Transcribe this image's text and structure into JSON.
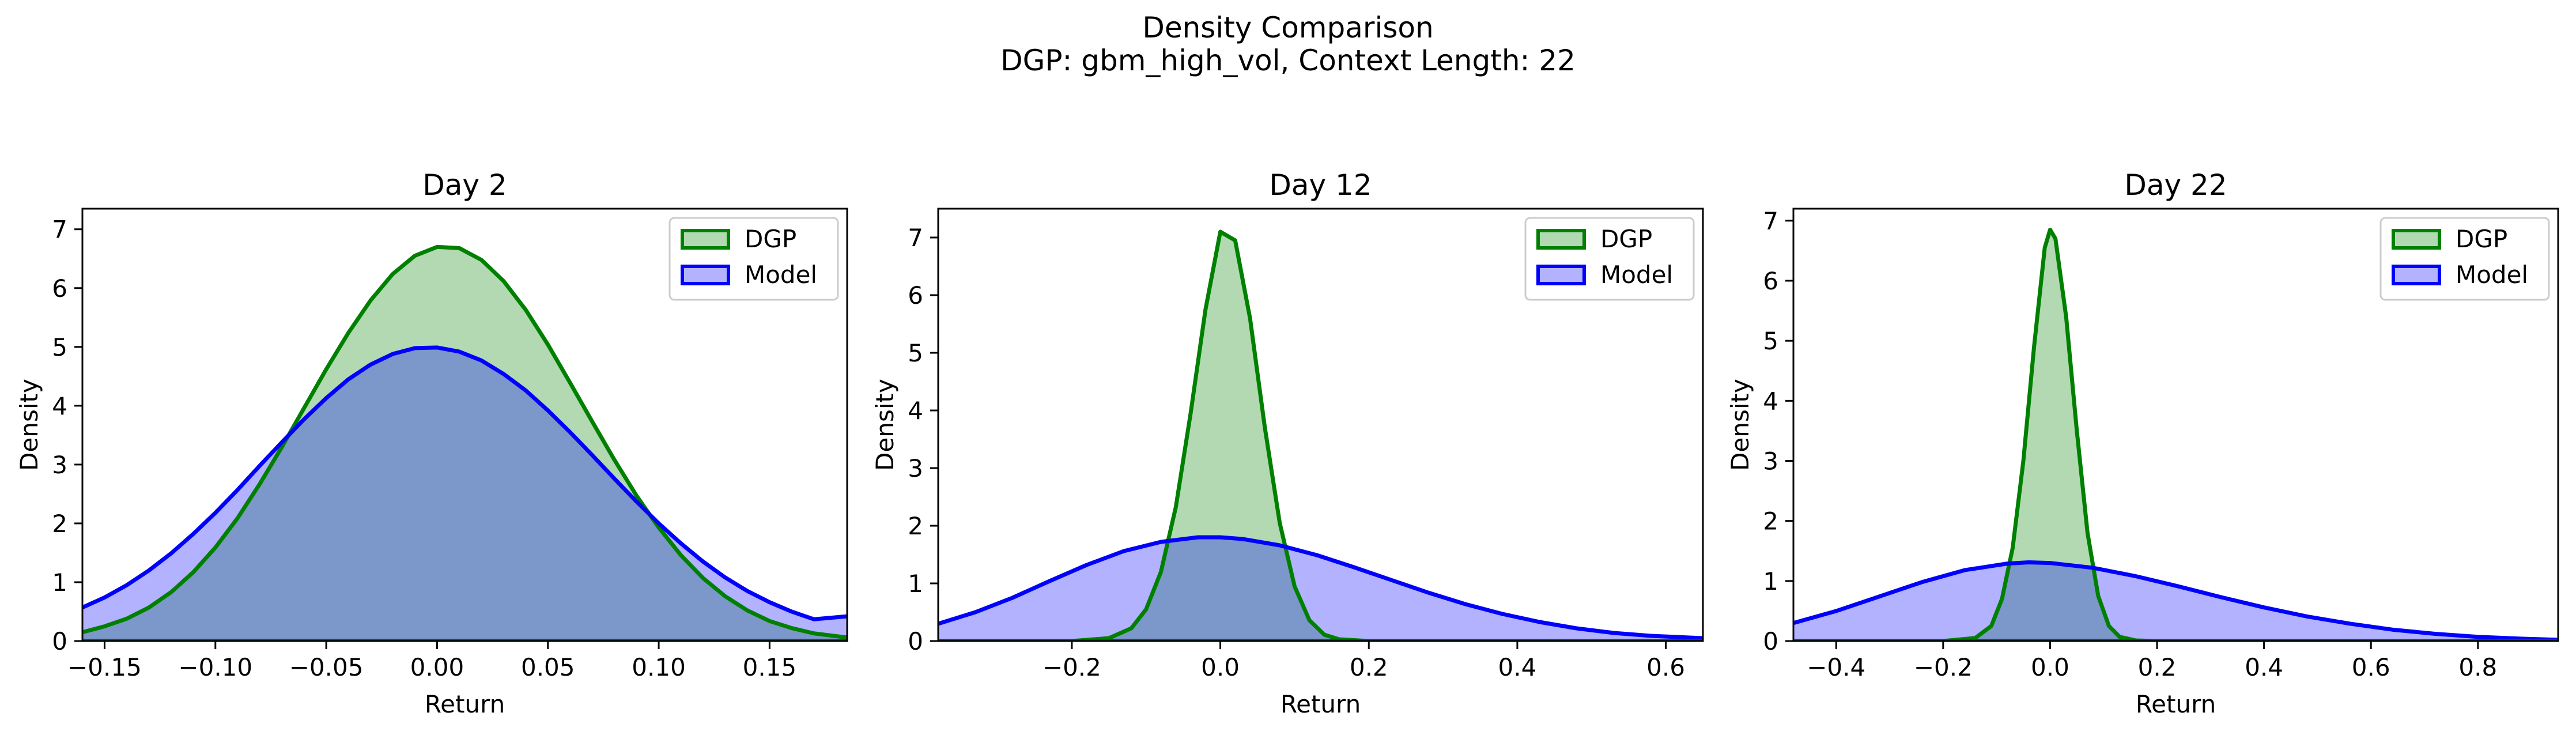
{
  "figure": {
    "title_line1": "Density Comparison",
    "title_line2": "DGP: gbm_high_vol, Context Length: 22"
  },
  "colors": {
    "dgp_line": "#008000",
    "dgp_fill": "#008000",
    "model_line": "#0000ff",
    "model_fill": "#0000ff",
    "overlap_line": "#005050"
  },
  "chart_data": [
    {
      "type": "area",
      "title": "Day 2",
      "xlabel": "Return",
      "ylabel": "Density",
      "xlim": [
        -0.16,
        0.185
      ],
      "ylim": [
        0,
        7.35
      ],
      "xticks": [
        -0.15,
        -0.1,
        -0.05,
        0.0,
        0.05,
        0.1,
        0.15
      ],
      "xtick_labels": [
        "−0.15",
        "−0.10",
        "−0.05",
        "0.00",
        "0.05",
        "0.10",
        "0.15"
      ],
      "yticks": [
        0,
        1,
        2,
        3,
        4,
        5,
        6,
        7
      ],
      "ytick_labels": [
        "0",
        "1",
        "2",
        "3",
        "4",
        "5",
        "6",
        "7"
      ],
      "legend": "top-right",
      "series": [
        {
          "name": "DGP",
          "x": [
            -0.16,
            -0.15,
            -0.14,
            -0.13,
            -0.12,
            -0.11,
            -0.1,
            -0.09,
            -0.08,
            -0.07,
            -0.06,
            -0.05,
            -0.04,
            -0.03,
            -0.02,
            -0.01,
            0.0,
            0.01,
            0.02,
            0.03,
            0.04,
            0.05,
            0.06,
            0.07,
            0.08,
            0.09,
            0.1,
            0.11,
            0.12,
            0.13,
            0.14,
            0.15,
            0.16,
            0.17,
            0.185
          ],
          "y": [
            0.15,
            0.25,
            0.38,
            0.57,
            0.83,
            1.17,
            1.59,
            2.09,
            2.67,
            3.3,
            3.96,
            4.62,
            5.24,
            5.79,
            6.24,
            6.55,
            6.7,
            6.68,
            6.48,
            6.12,
            5.63,
            5.04,
            4.39,
            3.73,
            3.08,
            2.47,
            1.93,
            1.46,
            1.07,
            0.76,
            0.52,
            0.34,
            0.22,
            0.13,
            0.06
          ]
        },
        {
          "name": "Model",
          "x": [
            -0.16,
            -0.15,
            -0.14,
            -0.13,
            -0.12,
            -0.11,
            -0.1,
            -0.09,
            -0.08,
            -0.07,
            -0.06,
            -0.05,
            -0.04,
            -0.03,
            -0.02,
            -0.01,
            0.0,
            0.01,
            0.02,
            0.03,
            0.04,
            0.05,
            0.06,
            0.07,
            0.08,
            0.09,
            0.1,
            0.11,
            0.12,
            0.13,
            0.14,
            0.15,
            0.16,
            0.17,
            0.185
          ],
          "y": [
            0.57,
            0.74,
            0.95,
            1.2,
            1.49,
            1.82,
            2.18,
            2.57,
            2.98,
            3.38,
            3.77,
            4.13,
            4.45,
            4.7,
            4.88,
            4.98,
            4.99,
            4.92,
            4.77,
            4.54,
            4.26,
            3.92,
            3.55,
            3.16,
            2.76,
            2.37,
            2.0,
            1.66,
            1.35,
            1.08,
            0.85,
            0.66,
            0.5,
            0.37,
            0.42
          ]
        }
      ]
    },
    {
      "type": "area",
      "title": "Day 12",
      "xlabel": "Return",
      "ylabel": "Density",
      "xlim": [
        -0.38,
        0.65
      ],
      "ylim": [
        0,
        7.5
      ],
      "xticks": [
        -0.2,
        0.0,
        0.2,
        0.4,
        0.6
      ],
      "xtick_labels": [
        "−0.2",
        "0.0",
        "0.2",
        "0.4",
        "0.6"
      ],
      "yticks": [
        0,
        1,
        2,
        3,
        4,
        5,
        6,
        7
      ],
      "ytick_labels": [
        "0",
        "1",
        "2",
        "3",
        "4",
        "5",
        "6",
        "7"
      ],
      "legend": "top-right",
      "series": [
        {
          "name": "DGP",
          "x": [
            -0.38,
            -0.2,
            -0.15,
            -0.12,
            -0.1,
            -0.08,
            -0.06,
            -0.04,
            -0.02,
            0.0,
            0.02,
            0.04,
            0.06,
            0.08,
            0.1,
            0.12,
            0.14,
            0.16,
            0.2,
            0.65
          ],
          "y": [
            0.0,
            0.0,
            0.05,
            0.22,
            0.55,
            1.2,
            2.32,
            3.95,
            5.75,
            7.1,
            6.95,
            5.6,
            3.7,
            2.05,
            0.95,
            0.36,
            0.11,
            0.03,
            0.0,
            0.0
          ]
        },
        {
          "name": "Model",
          "x": [
            -0.38,
            -0.33,
            -0.28,
            -0.23,
            -0.18,
            -0.13,
            -0.08,
            -0.03,
            0.0,
            0.03,
            0.08,
            0.13,
            0.18,
            0.23,
            0.28,
            0.33,
            0.38,
            0.43,
            0.48,
            0.53,
            0.58,
            0.65
          ],
          "y": [
            0.3,
            0.5,
            0.75,
            1.04,
            1.32,
            1.56,
            1.72,
            1.8,
            1.8,
            1.77,
            1.66,
            1.49,
            1.28,
            1.06,
            0.84,
            0.64,
            0.47,
            0.33,
            0.22,
            0.14,
            0.09,
            0.05
          ]
        }
      ]
    },
    {
      "type": "area",
      "title": "Day 22",
      "xlabel": "Return",
      "ylabel": "Density",
      "xlim": [
        -0.48,
        0.95
      ],
      "ylim": [
        0,
        7.2
      ],
      "xticks": [
        -0.4,
        -0.2,
        0.0,
        0.2,
        0.4,
        0.6,
        0.8
      ],
      "xtick_labels": [
        "−0.4",
        "−0.2",
        "0.0",
        "0.2",
        "0.4",
        "0.6",
        "0.8"
      ],
      "yticks": [
        0,
        1,
        2,
        3,
        4,
        5,
        6,
        7
      ],
      "ytick_labels": [
        "0",
        "1",
        "2",
        "3",
        "4",
        "5",
        "6",
        "7"
      ],
      "legend": "top-right",
      "series": [
        {
          "name": "DGP",
          "x": [
            -0.48,
            -0.2,
            -0.14,
            -0.11,
            -0.09,
            -0.07,
            -0.05,
            -0.03,
            -0.01,
            0.0,
            0.01,
            0.03,
            0.05,
            0.07,
            0.09,
            0.11,
            0.13,
            0.16,
            0.2,
            0.95
          ],
          "y": [
            0.0,
            0.0,
            0.05,
            0.25,
            0.7,
            1.55,
            3.0,
            4.9,
            6.55,
            6.85,
            6.7,
            5.4,
            3.5,
            1.8,
            0.75,
            0.25,
            0.07,
            0.01,
            0.0,
            0.0
          ]
        },
        {
          "name": "Model",
          "x": [
            -0.48,
            -0.4,
            -0.32,
            -0.24,
            -0.16,
            -0.08,
            -0.04,
            0.0,
            0.08,
            0.16,
            0.24,
            0.32,
            0.4,
            0.48,
            0.56,
            0.64,
            0.72,
            0.8,
            0.88,
            0.95
          ],
          "y": [
            0.3,
            0.5,
            0.74,
            0.98,
            1.18,
            1.29,
            1.31,
            1.3,
            1.22,
            1.08,
            0.91,
            0.73,
            0.56,
            0.41,
            0.29,
            0.19,
            0.12,
            0.07,
            0.04,
            0.02
          ]
        }
      ]
    }
  ]
}
